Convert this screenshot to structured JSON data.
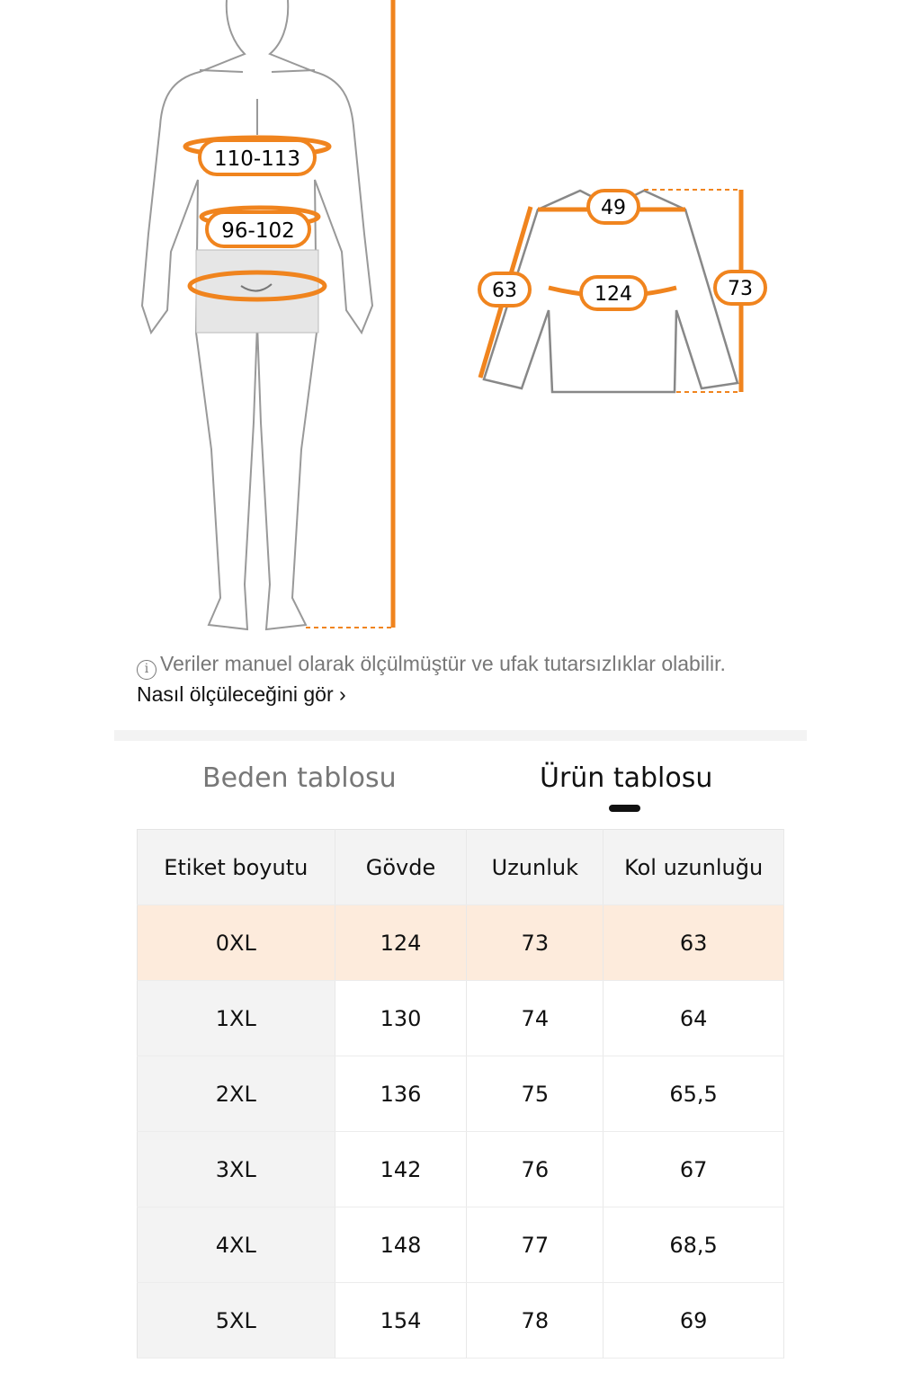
{
  "body_figure": {
    "chest": "110-113",
    "waist": "96-102"
  },
  "garment_figure": {
    "shoulder": "49",
    "sleeve": "63",
    "chest": "124",
    "length": "73"
  },
  "colors": {
    "accent": "#f0841e",
    "highlight_row": "#fdebdc"
  },
  "note": {
    "icon": "info-icon",
    "text": "Veriler manuel olarak ölçülmüştür ve ufak tutarsızlıklar olabilir.",
    "link": "Nasıl ölçüleceğini gör",
    "link_arrow": "›"
  },
  "tabs": [
    {
      "label": "Beden tablosu",
      "active": false
    },
    {
      "label": "Ürün tablosu",
      "active": true
    }
  ],
  "table": {
    "headers": [
      "Etiket boyutu",
      "Gövde",
      "Uzunluk",
      "Kol uzunluğu"
    ],
    "rows": [
      [
        "0XL",
        "124",
        "73",
        "63"
      ],
      [
        "1XL",
        "130",
        "74",
        "64"
      ],
      [
        "2XL",
        "136",
        "75",
        "65,5"
      ],
      [
        "3XL",
        "142",
        "76",
        "67"
      ],
      [
        "4XL",
        "148",
        "77",
        "68,5"
      ],
      [
        "5XL",
        "154",
        "78",
        "69"
      ]
    ]
  }
}
